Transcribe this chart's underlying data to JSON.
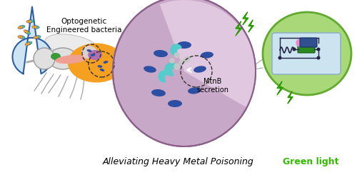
{
  "title": "Alleviating Heavy Metal Poisoning",
  "title_fontsize": 9,
  "label_optogenetic": "Optogenetic\nEngineered bacteria",
  "label_green_light": "Green light",
  "label_mtnb": "MtnB\nsecretion",
  "bg_color": "#ffffff",
  "drop_fill": "#cde4f5",
  "drop_edge": "#2e5fa0",
  "fly_body_color": "#e0e0e0",
  "fly_abdomen_color": "#f5a020",
  "bacterium_color": "#2c4fa3",
  "crescent_color": "#55cccc",
  "dot_color": "#c8c8c8",
  "cell_outer_color": "#c8a8c8",
  "cell_light_sector": "#e0c8e0",
  "cell_inner_color": "#9a6898",
  "green_circle_fill": "#a8d878",
  "green_circle_edge": "#60aa30",
  "circuit_bg": "#cce4f0",
  "green_flash_color": "#33bb00",
  "arrow_color": "#888888",
  "line_color": "#aaaaaa"
}
